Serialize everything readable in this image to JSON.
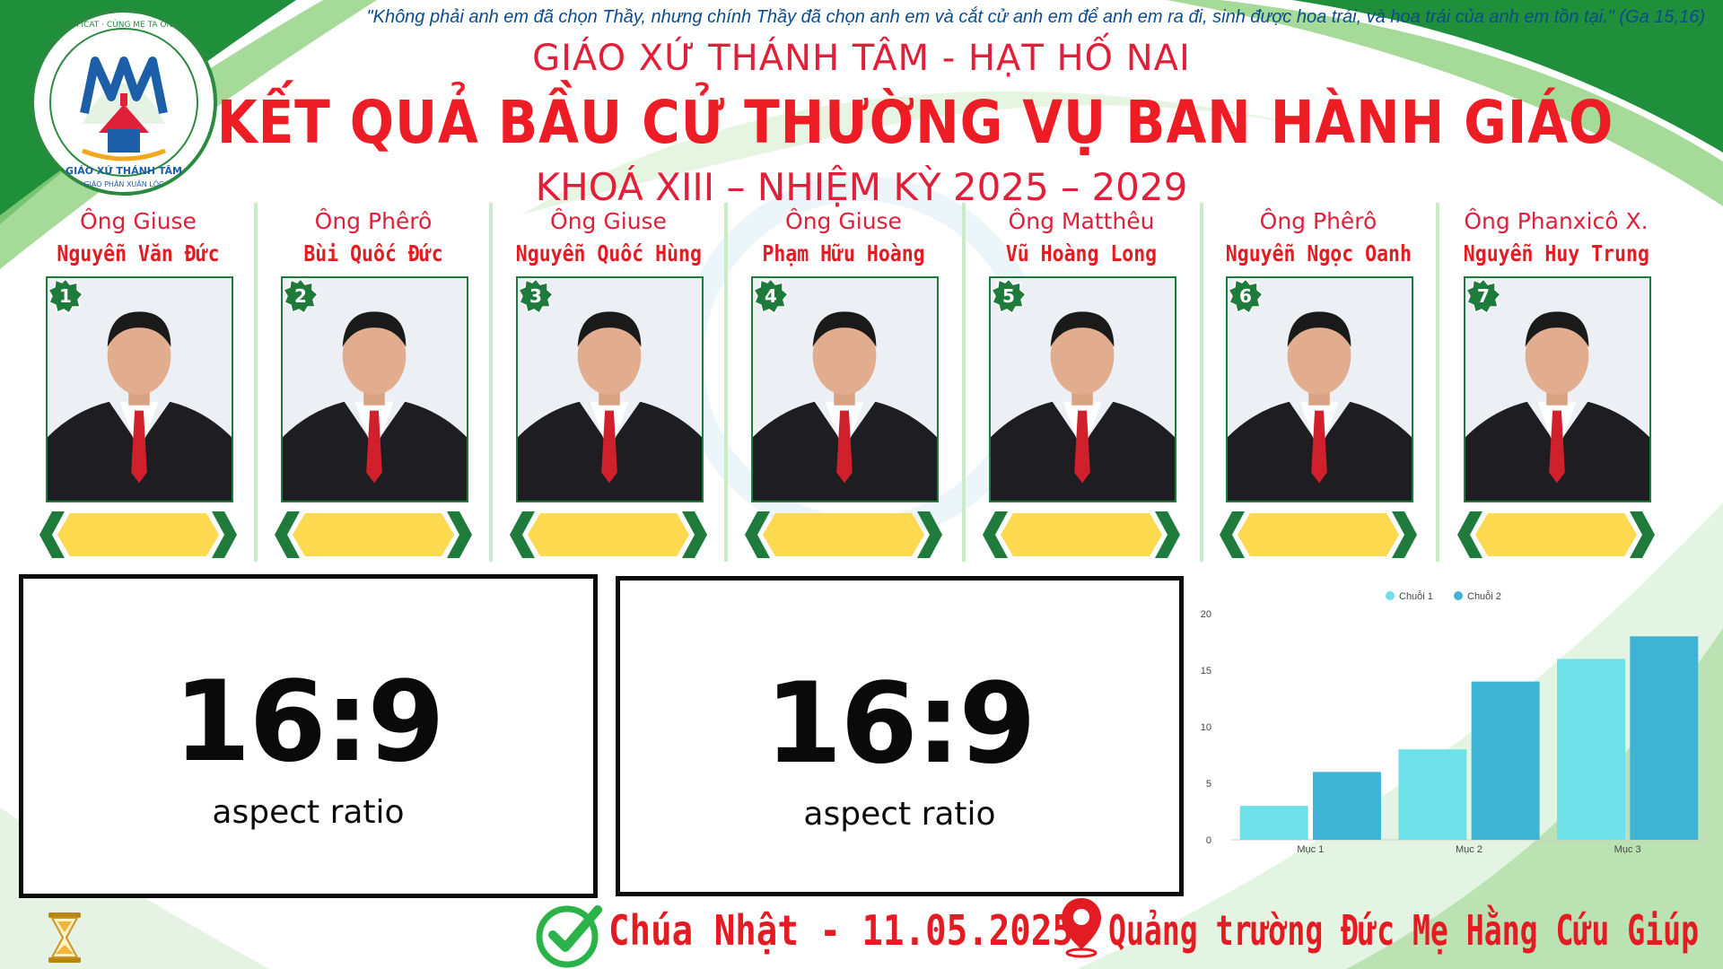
{
  "header": {
    "quote": "\"Không phải anh em đã chọn Thầy, nhưng chính Thầy đã chọn anh em và cắt cử anh em để anh em ra đi, sinh được hoa trái, và hoa trái của anh em tồn tại.\" (Ga 15,16)",
    "subtitle": "GIÁO XỨ THÁNH TÂM - HẠT HỐ NAI",
    "title": "KẾT QUẢ BẦU CỬ THƯỜNG VỤ BAN HÀNH GIÁO",
    "term": "KHOÁ XIII – NHIỆM KỲ 2025 – 2029"
  },
  "logo": {
    "ring_text": "MAGNIFICAT · CÙNG MẸ TA ON CHÚA",
    "monogram": "MM",
    "parish": "GIÁO XỨ THÁNH TÂM",
    "diocese": "GIÁO PHẬN XUÂN LỘC",
    "colors": {
      "ring": "#2a8a3e",
      "mono": "#1d5ea8",
      "accent": "#e0203a"
    }
  },
  "candidates": [
    {
      "num": "1",
      "role": "Ông Giuse",
      "name": "Nguyễn Văn Đức"
    },
    {
      "num": "2",
      "role": "Ông Phêrô",
      "name": "Bùi Quốc Đức"
    },
    {
      "num": "3",
      "role": "Ông Giuse",
      "name": "Nguyễn Quốc Hùng"
    },
    {
      "num": "4",
      "role": "Ông Giuse",
      "name": "Phạm Hữu Hoàng"
    },
    {
      "num": "5",
      "role": "Ông Matthêu",
      "name": "Vũ Hoàng Long"
    },
    {
      "num": "6",
      "role": "Ông Phêrô",
      "name": "Nguyễn Ngọc Oanh"
    },
    {
      "num": "7",
      "role": "Ông Phanxicô X.",
      "name": "Nguyễn Huy Trung"
    }
  ],
  "placeholders": [
    {
      "big": "16:9",
      "small": "aspect ratio"
    },
    {
      "big": "16:9",
      "small": "aspect ratio"
    }
  ],
  "chart_data": {
    "type": "bar",
    "categories": [
      "Mục 1",
      "Mục 2",
      "Mục 3"
    ],
    "series": [
      {
        "name": "Chuỗi 1",
        "values": [
          3,
          8,
          16
        ],
        "color": "#6ee0e8"
      },
      {
        "name": "Chuỗi 2",
        "values": [
          6,
          14,
          18
        ],
        "color": "#3eb3d4"
      }
    ],
    "ylim": [
      0,
      20
    ],
    "yticks": [
      0,
      5,
      10,
      15,
      20
    ],
    "legend": "top-center",
    "grid": false
  },
  "footer": {
    "date": "Chúa Nhật - 11.05.2025",
    "place": "Quảng trường Đức Mẹ Hằng Cứu Giúp"
  },
  "icons": [
    "hourglass-icon",
    "checkmark-icon",
    "location-pin-icon"
  ],
  "colors": {
    "title_red": "#ee1c24",
    "green": "#1e7b3c",
    "ribbon_yellow": "#fcd94f"
  }
}
